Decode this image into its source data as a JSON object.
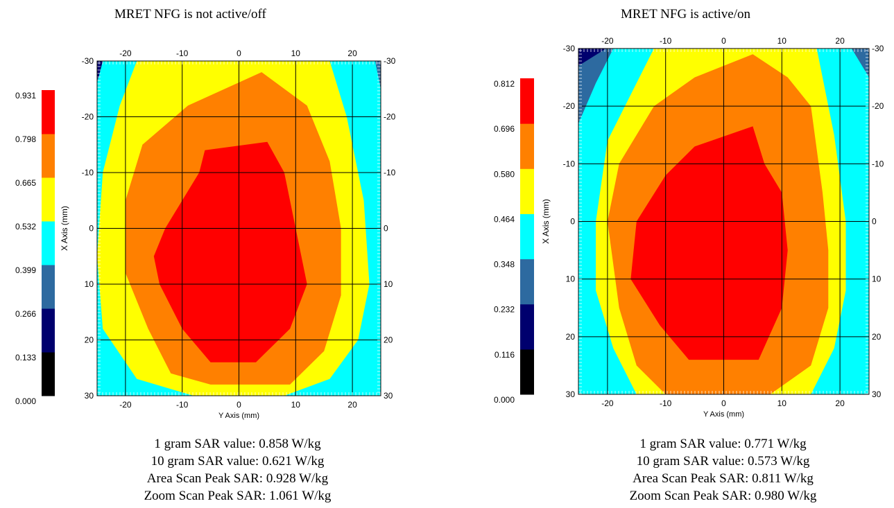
{
  "chart_data": [
    {
      "type": "heatmap",
      "title": "MRET NFG is not active/off",
      "xlabel": "Y Axis (mm)",
      "ylabel": "X Axis (mm)",
      "xlim": [
        -25,
        25
      ],
      "ylim": [
        -30,
        30
      ],
      "x_ticks": [
        "-20",
        "-10",
        "0",
        "10",
        "20"
      ],
      "y_ticks": [
        "-30",
        "-20",
        "-10",
        "0",
        "10",
        "20",
        "30"
      ],
      "colorbar_ticks": [
        "0.931",
        "0.798",
        "0.665",
        "0.532",
        "0.399",
        "0.266",
        "0.133",
        "0.000"
      ],
      "colorbar_colors": [
        "#000000",
        "#00006e",
        "#2d6aa0",
        "#00ffff",
        "#ffff00",
        "#ff8000",
        "#ff0000"
      ],
      "levels": [
        0.133,
        0.266,
        0.399,
        0.532,
        0.665,
        0.798,
        0.931
      ],
      "contours": [
        {
          "level": 0.532,
          "color": "#00ffff",
          "points": [
            [
              -24,
              -30
            ],
            [
              24,
              -30
            ],
            [
              25,
              -25
            ],
            [
              25,
              30
            ],
            [
              -25,
              30
            ],
            [
              -25,
              -26
            ]
          ]
        },
        {
          "level": 0.665,
          "color": "#ffff00",
          "points": [
            [
              -18,
              -30
            ],
            [
              16,
              -30
            ],
            [
              19,
              -20
            ],
            [
              22,
              -5
            ],
            [
              23,
              10
            ],
            [
              21,
              20
            ],
            [
              16,
              27
            ],
            [
              8,
              30
            ],
            [
              -8,
              30
            ],
            [
              -18,
              27
            ],
            [
              -24,
              18
            ],
            [
              -25,
              5
            ],
            [
              -24,
              -10
            ],
            [
              -21,
              -22
            ]
          ]
        },
        {
          "level": 0.798,
          "color": "#ff8000",
          "points": [
            [
              4,
              -28
            ],
            [
              12,
              -22
            ],
            [
              16,
              -12
            ],
            [
              18,
              0
            ],
            [
              18,
              12
            ],
            [
              15,
              22
            ],
            [
              9,
              28
            ],
            [
              -5,
              28
            ],
            [
              -12,
              26
            ],
            [
              -16,
              18
            ],
            [
              -20,
              8
            ],
            [
              -20,
              -5
            ],
            [
              -17,
              -15
            ],
            [
              -9,
              -22
            ]
          ]
        },
        {
          "level": 0.931,
          "color": "#ff0000",
          "points": [
            [
              5,
              -15.5
            ],
            [
              8,
              -10
            ],
            [
              10,
              0
            ],
            [
              12,
              10
            ],
            [
              9,
              18
            ],
            [
              3,
              24
            ],
            [
              -5,
              24
            ],
            [
              -10,
              18
            ],
            [
              -14,
              10
            ],
            [
              -15,
              5
            ],
            [
              -13,
              0
            ],
            [
              -10,
              -5
            ],
            [
              -7,
              -10
            ],
            [
              -6,
              -14
            ]
          ]
        }
      ],
      "stats": [
        "1 gram SAR value: 0.858 W/kg",
        "10 gram SAR value: 0.621 W/kg",
        "Area Scan Peak SAR: 0.928 W/kg",
        "Zoom Scan Peak SAR: 1.061 W/kg"
      ]
    },
    {
      "type": "heatmap",
      "title": "MRET NFG is active/on",
      "xlabel": "Y Axis (mm)",
      "ylabel": "X Axis (mm)",
      "xlim": [
        -25,
        25
      ],
      "ylim": [
        -30,
        30
      ],
      "x_ticks": [
        "-20",
        "-10",
        "0",
        "10",
        "20"
      ],
      "y_ticks": [
        "-30",
        "-20",
        "-10",
        "0",
        "10",
        "20",
        "30"
      ],
      "colorbar_ticks": [
        "0.812",
        "0.696",
        "0.580",
        "0.464",
        "0.348",
        "0.232",
        "0.116",
        "0.000"
      ],
      "colorbar_colors": [
        "#000000",
        "#00006e",
        "#2d6aa0",
        "#00ffff",
        "#ffff00",
        "#ff8000",
        "#ff0000"
      ],
      "levels": [
        0.116,
        0.232,
        0.348,
        0.464,
        0.58,
        0.696,
        0.812
      ],
      "contours": [
        {
          "level": 0.464,
          "color": "#00ffff",
          "points": [
            [
              -19,
              -30
            ],
            [
              22,
              -30
            ],
            [
              25,
              -25
            ],
            [
              25,
              30
            ],
            [
              -25,
              30
            ],
            [
              -25,
              -17
            ],
            [
              -22,
              -24
            ]
          ]
        },
        {
          "level": 0.58,
          "color": "#ffff00",
          "points": [
            [
              -12,
              -30
            ],
            [
              16,
              -30
            ],
            [
              19,
              -15
            ],
            [
              21,
              0
            ],
            [
              21,
              12
            ],
            [
              19,
              22
            ],
            [
              15,
              30
            ],
            [
              -15,
              30
            ],
            [
              -19,
              22
            ],
            [
              -22,
              12
            ],
            [
              -22,
              0
            ],
            [
              -20,
              -14
            ]
          ]
        },
        {
          "level": 0.696,
          "color": "#ff8000",
          "points": [
            [
              5,
              -29
            ],
            [
              11,
              -25
            ],
            [
              15,
              -20
            ],
            [
              17,
              -5
            ],
            [
              18,
              5
            ],
            [
              18,
              15
            ],
            [
              15,
              25
            ],
            [
              8,
              30
            ],
            [
              -10,
              30
            ],
            [
              -15,
              25
            ],
            [
              -18,
              15
            ],
            [
              -20,
              0
            ],
            [
              -18,
              -10
            ],
            [
              -12,
              -20
            ],
            [
              -5,
              -25
            ]
          ]
        },
        {
          "level": 0.812,
          "color": "#ff0000",
          "points": [
            [
              5,
              -16.5
            ],
            [
              7,
              -10
            ],
            [
              10,
              -5
            ],
            [
              11,
              5
            ],
            [
              10,
              15
            ],
            [
              6,
              24
            ],
            [
              -6,
              24
            ],
            [
              -11,
              18
            ],
            [
              -16,
              10
            ],
            [
              -15,
              0
            ],
            [
              -10,
              -8
            ],
            [
              -5,
              -13
            ]
          ]
        }
      ],
      "stats": [
        "1 gram SAR value: 0.771 W/kg",
        "10 gram SAR value: 0.573 W/kg",
        "Area Scan Peak SAR: 0.811 W/kg",
        "Zoom Scan Peak SAR: 0.980 W/kg"
      ]
    }
  ]
}
